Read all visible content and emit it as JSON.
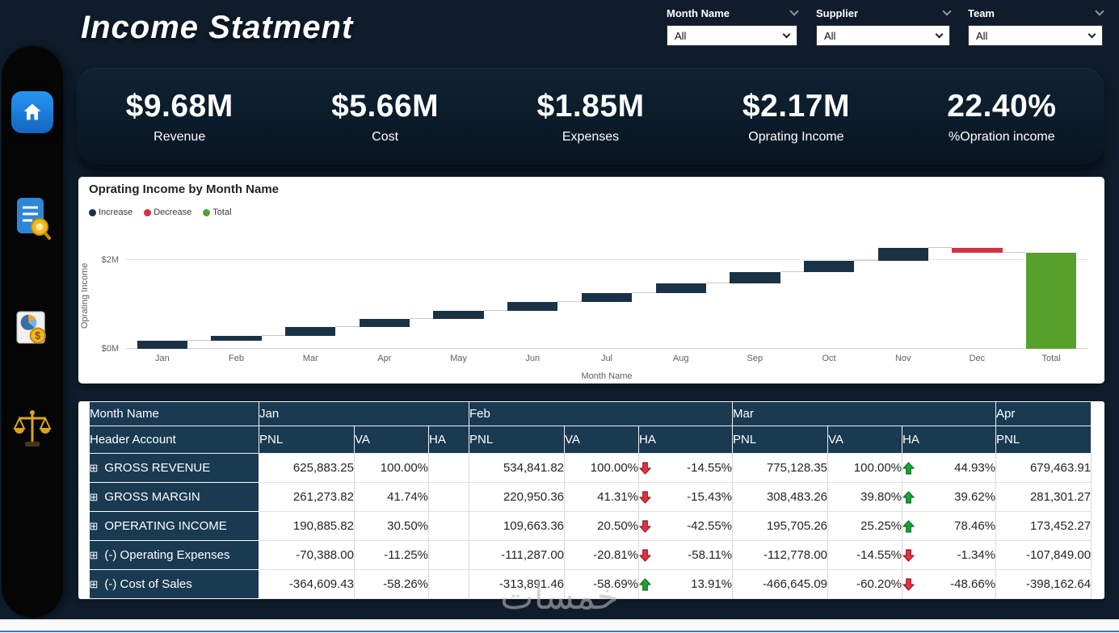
{
  "page": {
    "title": "Income Statment",
    "watermark": "خمسات"
  },
  "filters": [
    {
      "label": "Month Name",
      "value": "All"
    },
    {
      "label": "Supplier",
      "value": "All"
    },
    {
      "label": "Team",
      "value": "All"
    }
  ],
  "kpis": [
    {
      "value": "$9.68M",
      "label": "Revenue"
    },
    {
      "value": "$5.66M",
      "label": "Cost"
    },
    {
      "value": "$1.85M",
      "label": "Expenses"
    },
    {
      "value": "$2.17M",
      "label": "Oprating Income"
    },
    {
      "value": "22.40%",
      "label": "%Opration income"
    }
  ],
  "chart_data": {
    "type": "waterfall",
    "title": "Oprating Income by Month Name",
    "xlabel": "Month Name",
    "ylabel": "Oprating Income",
    "ylim": [
      0,
      2.4
    ],
    "yticks": [
      {
        "value": 0,
        "label": "$0M"
      },
      {
        "value": 2,
        "label": "$2M"
      }
    ],
    "colors": {
      "increase": "#1b3245",
      "decrease": "#d23345",
      "total": "#57a02b"
    },
    "legend": [
      {
        "label": "Increase",
        "kind": "increase"
      },
      {
        "label": "Decrease",
        "kind": "decrease"
      },
      {
        "label": "Total",
        "kind": "total"
      }
    ],
    "bars": [
      {
        "label": "Jan",
        "kind": "increase",
        "delta": 0.19
      },
      {
        "label": "Feb",
        "kind": "increase",
        "delta": 0.11
      },
      {
        "label": "Mar",
        "kind": "increase",
        "delta": 0.2
      },
      {
        "label": "Apr",
        "kind": "increase",
        "delta": 0.17
      },
      {
        "label": "May",
        "kind": "increase",
        "delta": 0.18
      },
      {
        "label": "Jun",
        "kind": "increase",
        "delta": 0.2
      },
      {
        "label": "Jul",
        "kind": "increase",
        "delta": 0.2
      },
      {
        "label": "Aug",
        "kind": "increase",
        "delta": 0.23
      },
      {
        "label": "Sep",
        "kind": "increase",
        "delta": 0.25
      },
      {
        "label": "Oct",
        "kind": "increase",
        "delta": 0.26
      },
      {
        "label": "Nov",
        "kind": "increase",
        "delta": 0.28
      },
      {
        "label": "Dec",
        "kind": "decrease",
        "delta": -0.1
      },
      {
        "label": "Total",
        "kind": "total",
        "delta": 2.17
      }
    ]
  },
  "table": {
    "corner_top": "Month Name",
    "corner_bottom": "Header Account",
    "expand_icon": "⊞",
    "colors": {
      "up": "#1aa336",
      "up_dark": "#0c6e22",
      "down": "#e2333e",
      "down_dark": "#931b24"
    },
    "groups": [
      {
        "month": "Jan",
        "cols": [
          "PNL",
          "VA",
          "HA"
        ]
      },
      {
        "month": "Feb",
        "cols": [
          "PNL",
          "VA",
          "HA"
        ]
      },
      {
        "month": "Mar",
        "cols": [
          "PNL",
          "VA",
          "HA"
        ]
      },
      {
        "month": "Apr",
        "cols": [
          "PNL"
        ]
      }
    ],
    "rows": [
      {
        "account": "GROSS REVENUE",
        "cells": [
          {
            "PNL": "625,883.25",
            "VA": "100.00%",
            "HA": null
          },
          {
            "PNL": "534,841.82",
            "VA": "100.00%",
            "HA": {
              "dir": "down",
              "value": "-14.55%"
            }
          },
          {
            "PNL": "775,128.35",
            "VA": "100.00%",
            "HA": {
              "dir": "up",
              "value": "44.93%"
            }
          },
          {
            "PNL": "679,463.91"
          }
        ]
      },
      {
        "account": "GROSS MARGIN",
        "cells": [
          {
            "PNL": "261,273.82",
            "VA": "41.74%",
            "HA": null
          },
          {
            "PNL": "220,950.36",
            "VA": "41.31%",
            "HA": {
              "dir": "down",
              "value": "-15.43%"
            }
          },
          {
            "PNL": "308,483.26",
            "VA": "39.80%",
            "HA": {
              "dir": "up",
              "value": "39.62%"
            }
          },
          {
            "PNL": "281,301.27"
          }
        ]
      },
      {
        "account": "OPERATING INCOME",
        "cells": [
          {
            "PNL": "190,885.82",
            "VA": "30.50%",
            "HA": null
          },
          {
            "PNL": "109,663.36",
            "VA": "20.50%",
            "HA": {
              "dir": "down",
              "value": "-42.55%"
            }
          },
          {
            "PNL": "195,705.26",
            "VA": "25.25%",
            "HA": {
              "dir": "up",
              "value": "78.46%"
            }
          },
          {
            "PNL": "173,452.27"
          }
        ]
      },
      {
        "account": "(-) Operating Expenses",
        "cells": [
          {
            "PNL": "-70,388.00",
            "VA": "-11.25%",
            "HA": null
          },
          {
            "PNL": "-111,287.00",
            "VA": "-20.81%",
            "HA": {
              "dir": "down",
              "value": "-58.11%"
            }
          },
          {
            "PNL": "-112,778.00",
            "VA": "-14.55%",
            "HA": {
              "dir": "down",
              "value": "-1.34%"
            }
          },
          {
            "PNL": "-107,849.00"
          }
        ]
      },
      {
        "account": "(-) Cost of Sales",
        "cells": [
          {
            "PNL": "-364,609.43",
            "VA": "-58.26%",
            "HA": null
          },
          {
            "PNL": "-313,891.46",
            "VA": "-58.69%",
            "HA": {
              "dir": "up",
              "value": "13.91%"
            }
          },
          {
            "PNL": "-466,645.09",
            "VA": "-60.20%",
            "HA": {
              "dir": "down",
              "value": "-48.66%"
            }
          },
          {
            "PNL": "-398,162.64"
          }
        ]
      }
    ]
  },
  "icons": {
    "sidebar": [
      "home-icon",
      "report-search-icon",
      "finance-pie-icon",
      "scales-icon"
    ],
    "dropdown_chevron": "chevron-down-icon",
    "trend_up": "arrow-up-icon",
    "trend_down": "arrow-down-icon"
  }
}
